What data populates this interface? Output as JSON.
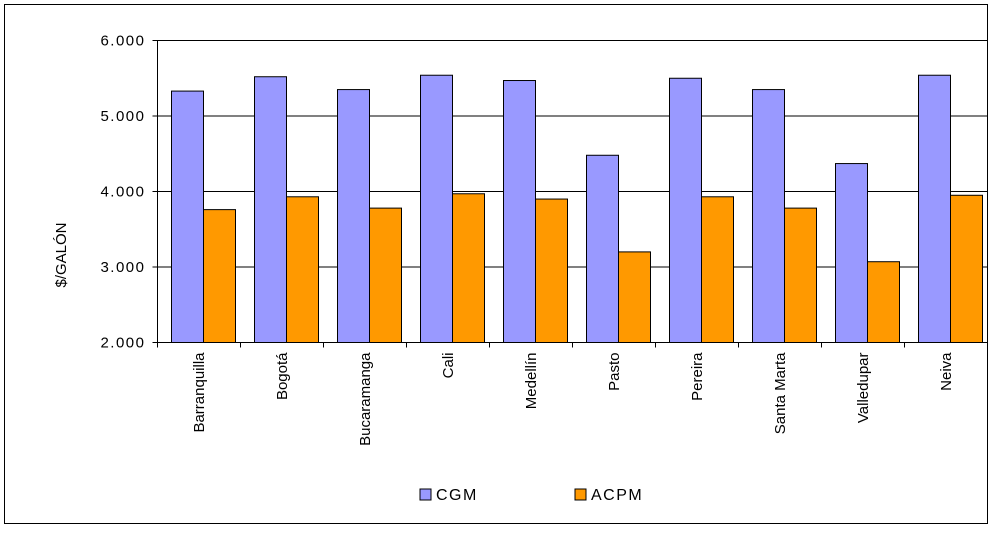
{
  "chart_data": {
    "type": "bar",
    "title": "",
    "xlabel": "",
    "ylabel": "$/GALÓN",
    "ylim": [
      2000,
      6000
    ],
    "yticks": [
      2000,
      3000,
      4000,
      5000,
      6000
    ],
    "ytick_labels": [
      "2.000",
      "3.000",
      "4.000",
      "5.000",
      "6.000"
    ],
    "grid": true,
    "legend_position": "bottom",
    "categories": [
      "Barranquilla",
      "Bogotá",
      "Bucaramanga",
      "Cali",
      "Medellín",
      "Pasto",
      "Pereira",
      "Santa Marta",
      "Valledupar",
      "Neiva"
    ],
    "series": [
      {
        "name": "CGM",
        "color": "#9999ff",
        "values": [
          5330,
          5520,
          5350,
          5540,
          5470,
          4480,
          5500,
          5350,
          4370,
          5540
        ]
      },
      {
        "name": "ACPM",
        "color": "#ff9900",
        "values": [
          3760,
          3930,
          3780,
          3970,
          3900,
          3200,
          3930,
          3780,
          3070,
          3950
        ]
      }
    ]
  }
}
